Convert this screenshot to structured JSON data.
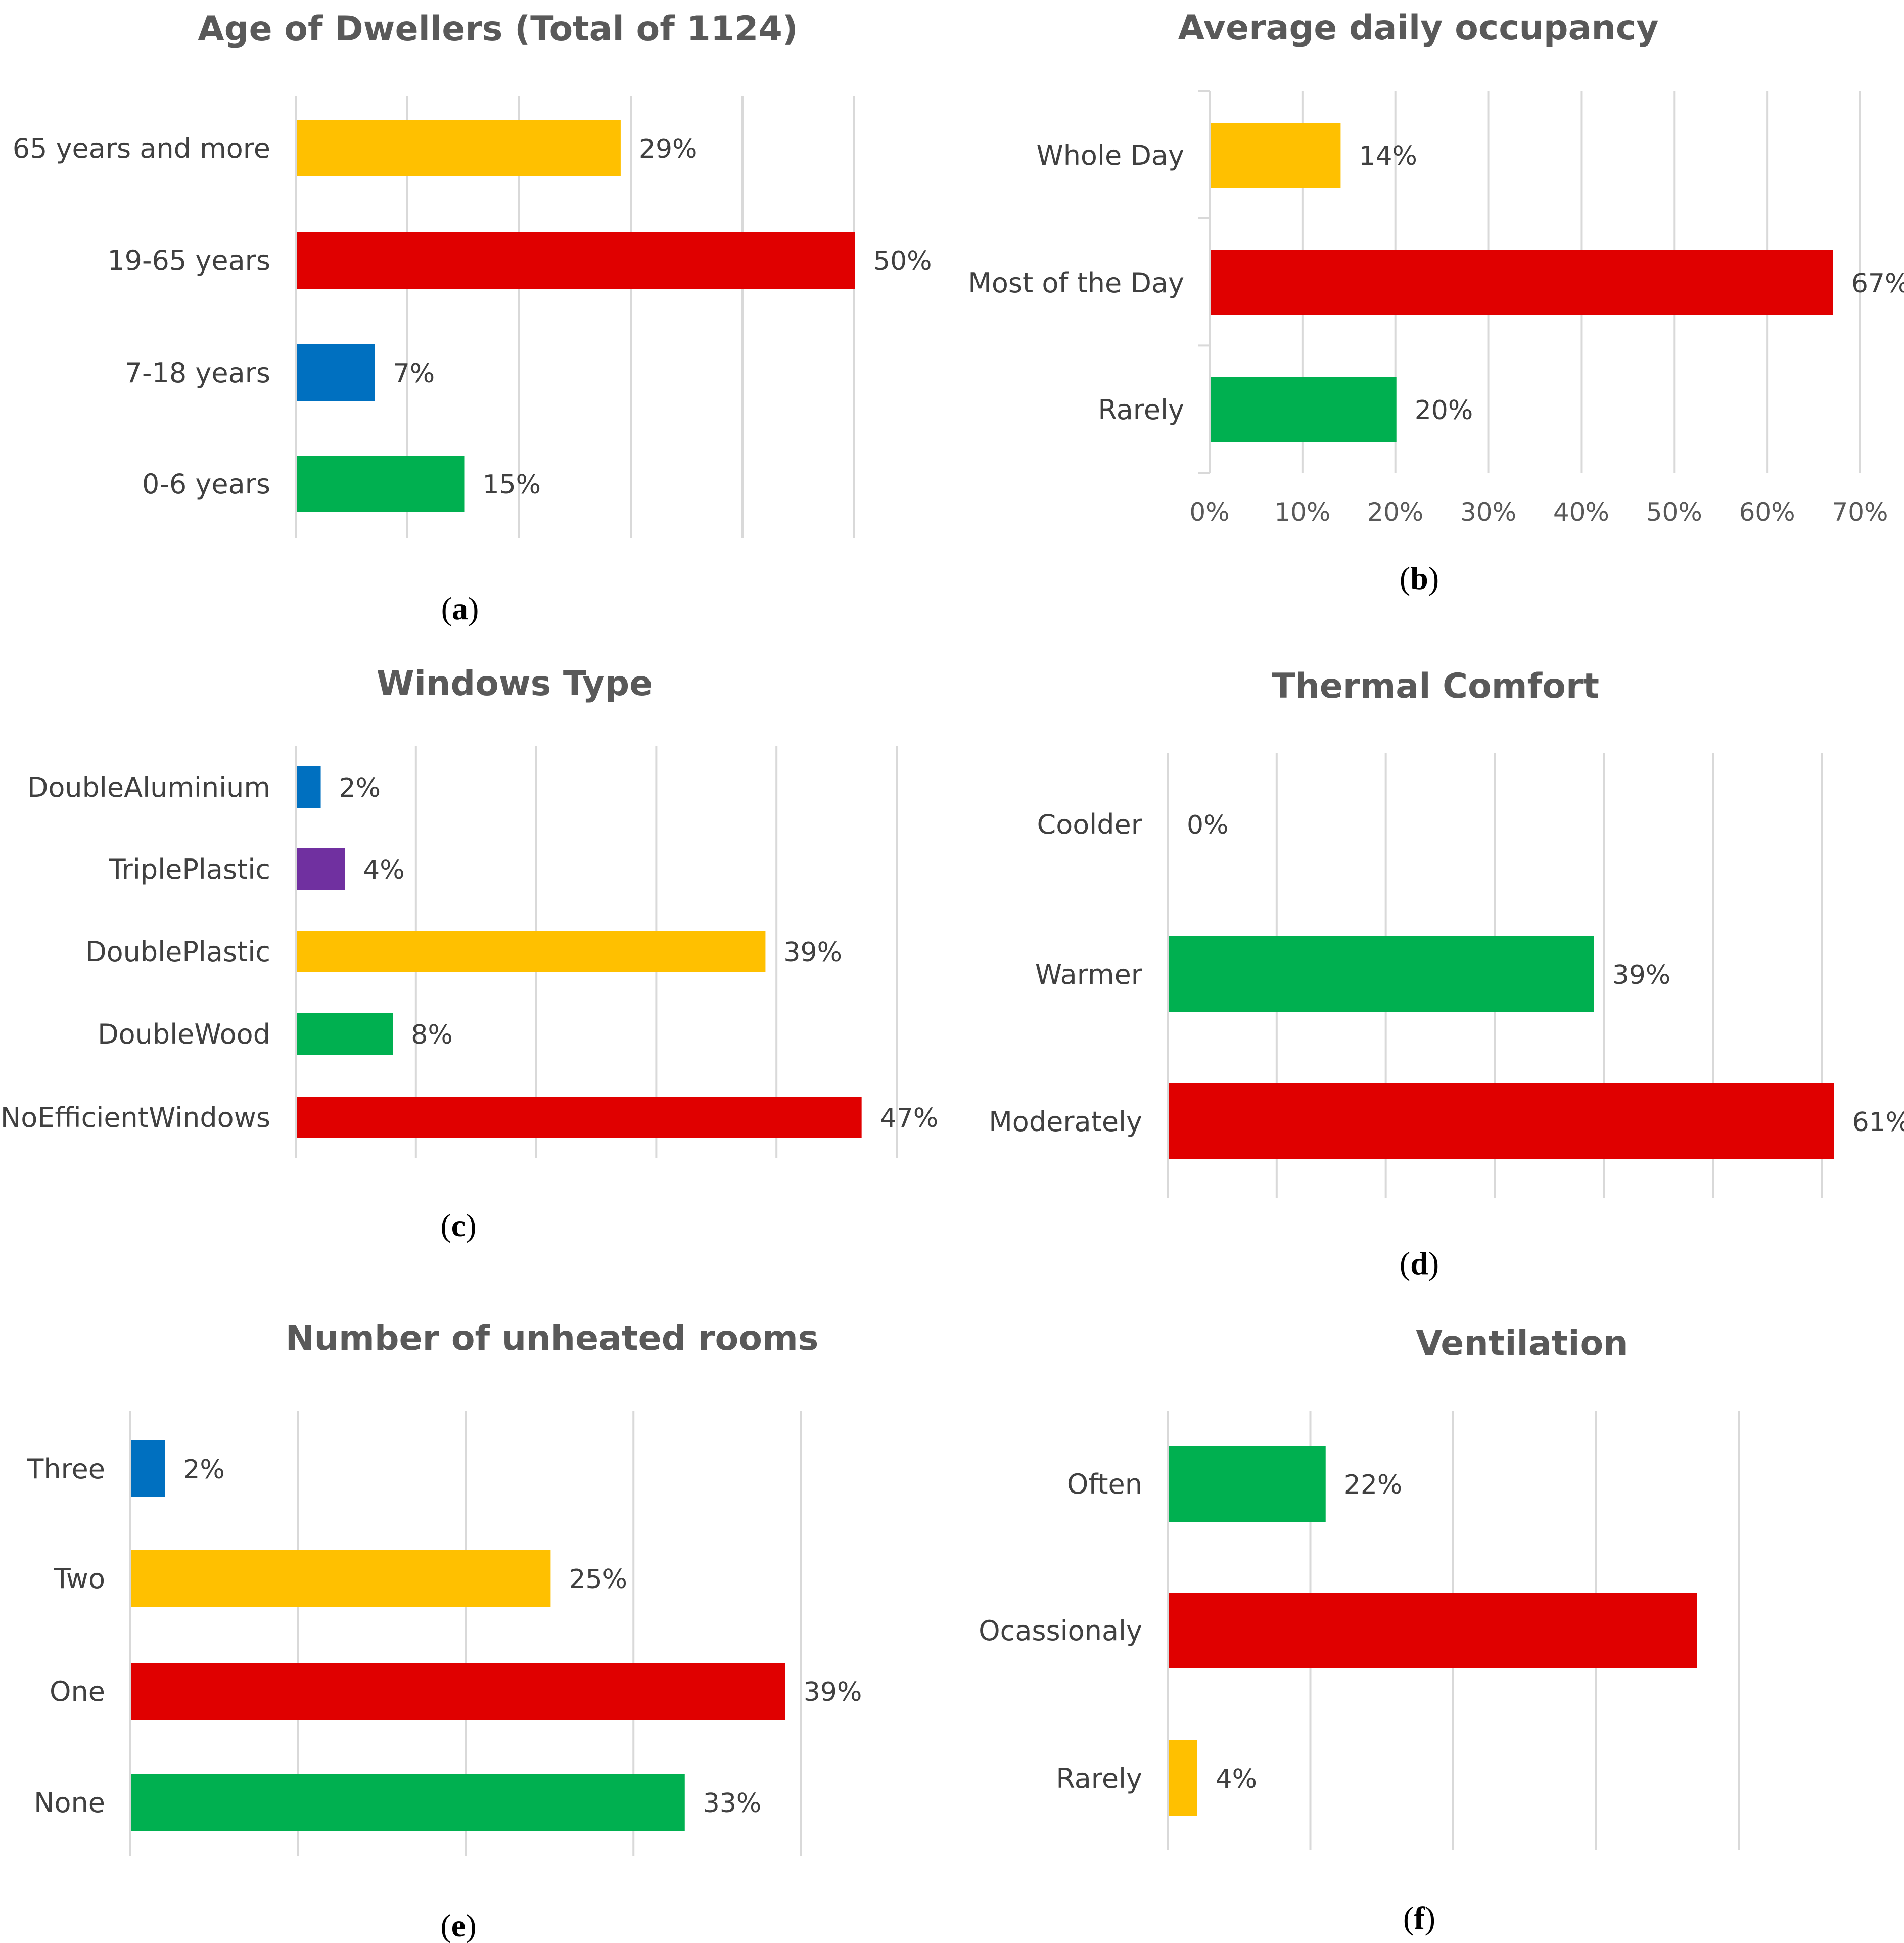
{
  "colors": {
    "yellow": "#ffc000",
    "red": "#e00000",
    "blue": "#0070c0",
    "green": "#00b050",
    "purple": "#7030a0"
  },
  "chart_data": [
    {
      "id": "a",
      "type": "bar",
      "orientation": "horizontal",
      "title": "Age of Dwellers (Total of 1124)",
      "panel_label": "a",
      "categories": [
        "65 years and more",
        "19-65 years",
        "7-18 years",
        "0-6 years"
      ],
      "values": [
        29,
        50,
        7,
        15
      ],
      "labels": [
        "29%",
        "50%",
        "7%",
        "15%"
      ],
      "bar_colors": [
        "yellow",
        "red",
        "blue",
        "green"
      ],
      "xlim": [
        0,
        50
      ],
      "grid_step": 10,
      "show_ticks": false,
      "tick_labels": []
    },
    {
      "id": "b",
      "type": "bar",
      "orientation": "horizontal",
      "title": "Average daily occupancy",
      "panel_label": "b",
      "categories": [
        "Whole Day",
        "Most of the Day",
        "Rarely"
      ],
      "values": [
        14,
        67,
        20
      ],
      "labels": [
        "14%",
        "67%",
        "20%"
      ],
      "bar_colors": [
        "yellow",
        "red",
        "green"
      ],
      "xlim": [
        0,
        70
      ],
      "grid_step": 10,
      "show_ticks": true,
      "tick_labels": [
        "0%",
        "10%",
        "20%",
        "30%",
        "40%",
        "50%",
        "60%",
        "70%"
      ]
    },
    {
      "id": "c",
      "type": "bar",
      "orientation": "horizontal",
      "title": "Windows Type",
      "panel_label": "c",
      "categories": [
        "DoubleAluminium",
        "TriplePlastic",
        "DoublePlastic",
        "DoubleWood",
        "NoEfficientWindows"
      ],
      "values": [
        2,
        4,
        39,
        8,
        47
      ],
      "labels": [
        "2%",
        "4%",
        "39%",
        "8%",
        "47%"
      ],
      "bar_colors": [
        "blue",
        "purple",
        "yellow",
        "green",
        "red"
      ],
      "xlim": [
        0,
        50
      ],
      "grid_step": 10,
      "show_ticks": false,
      "tick_labels": []
    },
    {
      "id": "d",
      "type": "bar",
      "orientation": "horizontal",
      "title": "Thermal Comfort",
      "panel_label": "d",
      "categories": [
        "Coolder",
        "Warmer",
        "Moderately"
      ],
      "values": [
        0,
        39,
        61
      ],
      "labels": [
        "0%",
        "39%",
        "61%"
      ],
      "bar_colors": [
        "green",
        "green",
        "red"
      ],
      "xlim": [
        0,
        60
      ],
      "grid_step": 10,
      "show_ticks": false,
      "tick_labels": []
    },
    {
      "id": "e",
      "type": "bar",
      "orientation": "horizontal",
      "title": "Number of unheated rooms",
      "panel_label": "e",
      "categories": [
        "Three",
        "Two",
        "One",
        "None"
      ],
      "values": [
        2,
        25,
        39,
        33
      ],
      "labels": [
        "2%",
        "25%",
        "39%",
        "33%"
      ],
      "bar_colors": [
        "blue",
        "yellow",
        "red",
        "green"
      ],
      "xlim": [
        0,
        40
      ],
      "grid_step": 10,
      "show_ticks": false,
      "tick_labels": []
    },
    {
      "id": "f",
      "type": "bar",
      "orientation": "horizontal",
      "title": "Ventilation",
      "panel_label": "f",
      "categories": [
        "Often",
        "Ocassionaly",
        "Rarely"
      ],
      "values": [
        22,
        74,
        4
      ],
      "labels": [
        "22%",
        "",
        "4%"
      ],
      "bar_colors": [
        "green",
        "red",
        "yellow"
      ],
      "xlim": [
        0,
        80
      ],
      "grid_step": 20,
      "show_ticks": false,
      "tick_labels": []
    }
  ]
}
